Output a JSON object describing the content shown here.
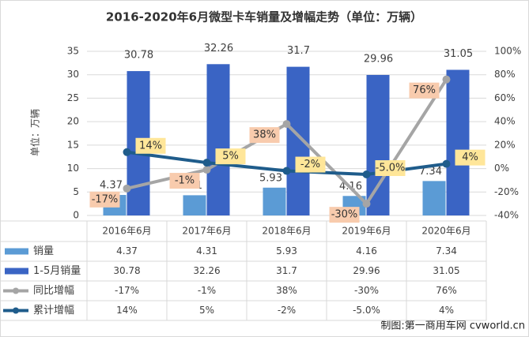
{
  "chart_data": {
    "type": "bar-line",
    "title": "2016-2020年6月微型卡车销量及增幅走势（单位：万辆）",
    "y_label": "单位：万辆",
    "source": "制图:第一商用车网 cvworld.cn",
    "categories": [
      "2016年6月",
      "2017年6月",
      "2018年6月",
      "2019年6月",
      "2020年6月"
    ],
    "series": [
      {
        "name": "销量",
        "type": "bar",
        "color": "#5b9bd5",
        "values": [
          4.37,
          4.31,
          5.93,
          4.16,
          7.34
        ]
      },
      {
        "name": "1-5月销量",
        "type": "bar",
        "color": "#3a64c4",
        "values": [
          30.78,
          32.26,
          31.7,
          29.96,
          31.05
        ]
      },
      {
        "name": "同比增幅",
        "type": "line",
        "axis": "y2",
        "color": "#a5a5a5",
        "label_bg": "#f8cbad",
        "values": [
          -17,
          -1,
          38,
          -30,
          76
        ],
        "value_labels": [
          "-17%",
          "-1%",
          "38%",
          "-30%",
          "76%"
        ]
      },
      {
        "name": "累计增幅",
        "type": "line",
        "axis": "y2",
        "color": "#1f5c8b",
        "label_bg": "#ffe699",
        "values": [
          14,
          5,
          -2,
          -5.0,
          4
        ],
        "value_labels": [
          "14%",
          "5%",
          "-2%",
          "-5.0%",
          "4%"
        ]
      }
    ],
    "ylim": [
      0,
      35
    ],
    "yticks": [
      0,
      5,
      10,
      15,
      20,
      25,
      30,
      35
    ],
    "y2lim": [
      -40,
      100
    ],
    "y2ticks": [
      {
        "value": -40,
        "label": "-40%"
      },
      {
        "value": -20,
        "label": "-20%"
      },
      {
        "value": 0,
        "label": "0%"
      },
      {
        "value": 20,
        "label": "20%"
      },
      {
        "value": 40,
        "label": "40%"
      },
      {
        "value": 60,
        "label": "60%"
      },
      {
        "value": 80,
        "label": "80%"
      },
      {
        "value": 100,
        "label": "100%"
      }
    ],
    "grid": true
  }
}
